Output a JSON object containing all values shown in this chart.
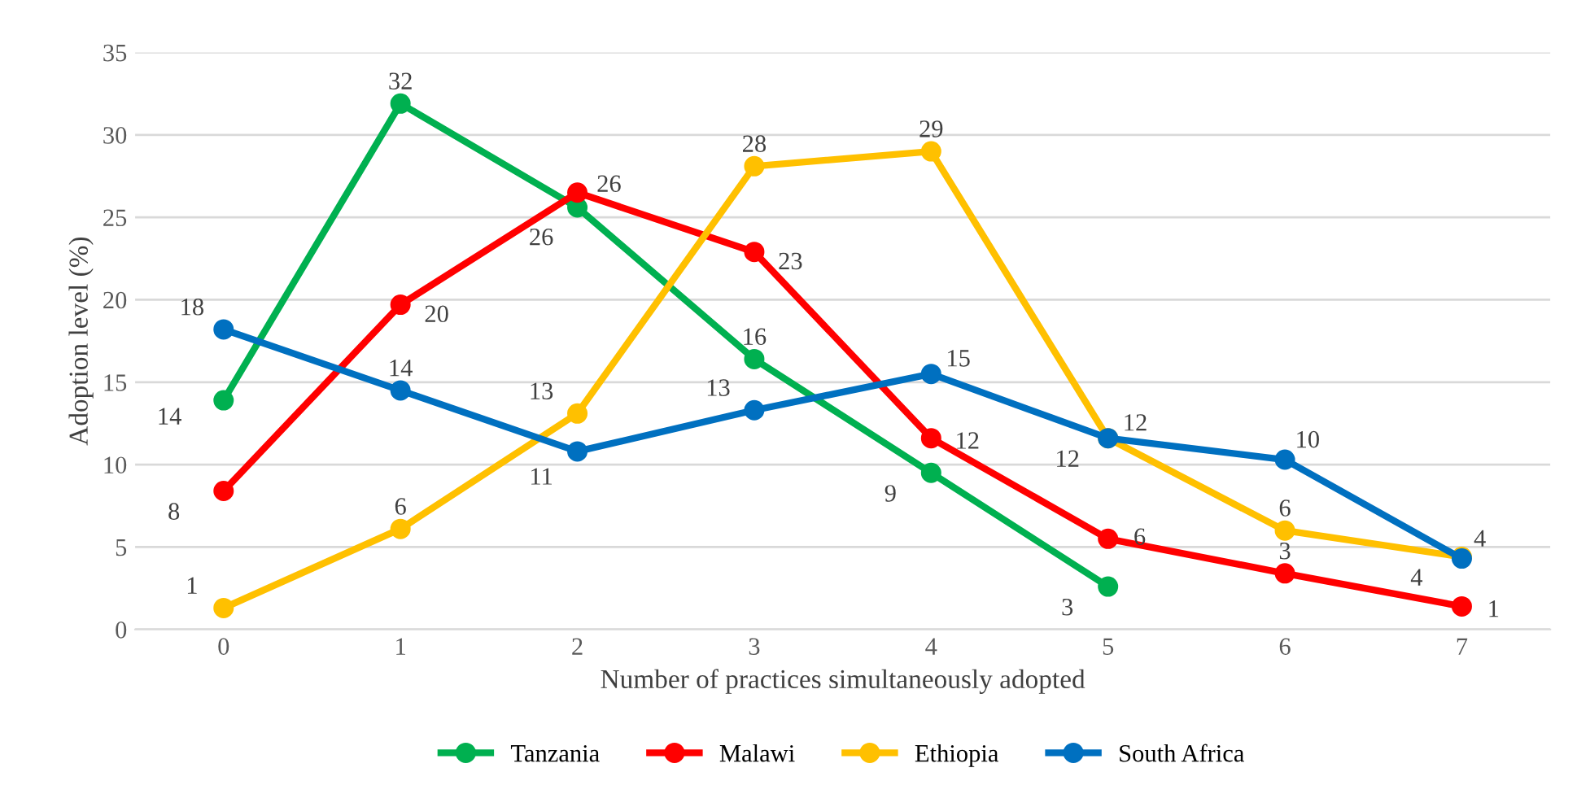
{
  "chart_data": {
    "type": "line",
    "xlabel": "Number of practices simultaneously adopted",
    "ylabel": "Adoption level (%)",
    "categories": [
      "0",
      "1",
      "2",
      "3",
      "4",
      "5",
      "6",
      "7"
    ],
    "ylim": [
      0,
      35
    ],
    "yticks": [
      0,
      5,
      10,
      15,
      20,
      25,
      30,
      35
    ],
    "grid": "y",
    "legend": "bottom",
    "marker": "circle",
    "line_style": "solid",
    "series": [
      {
        "name": "Tanzania",
        "color": "#00b050",
        "values": [
          13.9,
          31.9,
          25.6,
          16.4,
          9.5,
          2.6,
          null,
          null
        ],
        "value_labels": [
          "14",
          "32",
          "26",
          "16",
          "9",
          "3",
          null,
          null
        ]
      },
      {
        "name": "Malawi",
        "color": "#ff0000",
        "values": [
          8.4,
          19.7,
          26.5,
          22.9,
          11.6,
          5.5,
          3.4,
          1.4
        ],
        "value_labels": [
          "8",
          "20",
          "26",
          "23",
          "12",
          "6",
          "3",
          "1"
        ]
      },
      {
        "name": "Ethiopia",
        "color": "#ffc000",
        "values": [
          1.3,
          6.1,
          13.1,
          28.1,
          29.0,
          11.6,
          6.0,
          4.4
        ],
        "value_labels": [
          "1",
          "6",
          "13",
          "28",
          "29",
          "12",
          "6",
          "4"
        ]
      },
      {
        "name": "South Africa",
        "color": "#0070c0",
        "values": [
          18.2,
          14.5,
          10.8,
          13.3,
          15.5,
          11.6,
          10.3,
          4.3
        ],
        "value_labels": [
          "18",
          "14",
          "11",
          "13",
          "15",
          "12",
          "10",
          "4"
        ]
      }
    ]
  }
}
